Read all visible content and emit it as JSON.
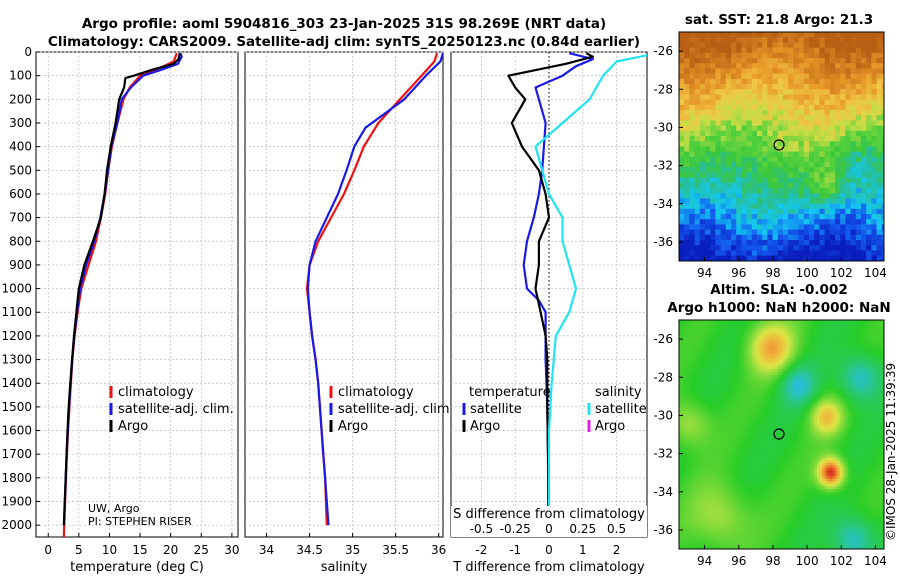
{
  "header": {
    "line1": "Argo profile: aoml 5904816_303 23-Jan-2025 31S 98.269E (NRT data)",
    "line2": "Climatology: CARS2009. Satellite-adj clim: synTS_20250123.nc (0.84d earlier)"
  },
  "attribution": {
    "text": "UW, Argo",
    "pi": "PI: STEPHEN RISER"
  },
  "credit": "©IMOS 28-Jan-2025 11:39:39",
  "colors": {
    "climatology": "#ee1111",
    "satellite": "#1a1ae6",
    "argo": "#000000",
    "sat_salinity": "#22e3f0",
    "argo_salinity": "#e020e0"
  },
  "depth_ticks": [
    "0",
    "100",
    "200",
    "300",
    "400",
    "500",
    "600",
    "700",
    "800",
    "900",
    "1000",
    "1100",
    "1200",
    "1300",
    "1400",
    "1500",
    "1600",
    "1700",
    "1800",
    "1900",
    "2000"
  ],
  "chart_data": [
    {
      "type": "line",
      "title": "",
      "xlabel": "temperature (deg C)",
      "ylabel": "depth",
      "xlim": [
        -2,
        31
      ],
      "ylim": [
        2050,
        0
      ],
      "xticks": [
        "0",
        "5",
        "10",
        "15",
        "20",
        "25",
        "30"
      ],
      "legend": [
        "climatology",
        "satellite-adj. clim.",
        "Argo"
      ],
      "series": [
        {
          "name": "climatology",
          "color": "#ee1111",
          "points": [
            [
              21,
              5
            ],
            [
              20.5,
              40
            ],
            [
              18,
              70
            ],
            [
              15,
              100
            ],
            [
              13.3,
              150
            ],
            [
              12.3,
              200
            ],
            [
              11.3,
              300
            ],
            [
              10.4,
              400
            ],
            [
              9.8,
              500
            ],
            [
              9.3,
              600
            ],
            [
              8.6,
              700
            ],
            [
              7.8,
              800
            ],
            [
              6.6,
              900
            ],
            [
              5.4,
              1000
            ],
            [
              4.8,
              1100
            ],
            [
              4.3,
              1200
            ],
            [
              3.95,
              1300
            ],
            [
              3.7,
              1400
            ],
            [
              3.45,
              1500
            ],
            [
              3.25,
              1600
            ],
            [
              3.05,
              1700
            ],
            [
              2.9,
              1800
            ],
            [
              2.75,
              1900
            ],
            [
              2.6,
              2000
            ],
            [
              2.55,
              2050
            ]
          ]
        },
        {
          "name": "satellite-adj. clim.",
          "color": "#1a1ae6",
          "points": [
            [
              21.6,
              5
            ],
            [
              21.8,
              20
            ],
            [
              21.2,
              50
            ],
            [
              18.5,
              75
            ],
            [
              15.5,
              100
            ],
            [
              13.5,
              150
            ],
            [
              12.0,
              200
            ],
            [
              11.3,
              300
            ],
            [
              10.3,
              400
            ],
            [
              9.8,
              500
            ],
            [
              9.2,
              600
            ],
            [
              8.5,
              700
            ],
            [
              7.5,
              800
            ],
            [
              6.2,
              900
            ],
            [
              5.2,
              1000
            ],
            [
              4.7,
              1100
            ],
            [
              4.25,
              1200
            ],
            [
              3.9,
              1300
            ],
            [
              3.65,
              1400
            ],
            [
              3.4,
              1500
            ],
            [
              3.2,
              1600
            ],
            [
              3.0,
              1700
            ],
            [
              2.85,
              1800
            ],
            [
              2.7,
              1900
            ],
            [
              2.55,
              2000
            ]
          ]
        },
        {
          "name": "Argo",
          "color": "#000000",
          "points": [
            [
              21.5,
              5
            ],
            [
              21.3,
              30
            ],
            [
              20.5,
              50
            ],
            [
              17,
              75
            ],
            [
              14,
              100
            ],
            [
              12.6,
              110
            ],
            [
              12.4,
              150
            ],
            [
              11.6,
              200
            ],
            [
              11.0,
              300
            ],
            [
              10.2,
              400
            ],
            [
              9.6,
              500
            ],
            [
              9.2,
              600
            ],
            [
              8.6,
              700
            ],
            [
              7.3,
              800
            ],
            [
              5.9,
              900
            ],
            [
              5.0,
              1000
            ],
            [
              4.6,
              1100
            ],
            [
              4.2,
              1200
            ],
            [
              3.9,
              1300
            ],
            [
              3.6,
              1400
            ],
            [
              3.35,
              1500
            ],
            [
              3.15,
              1600
            ],
            [
              3.0,
              1700
            ],
            [
              2.85,
              1800
            ],
            [
              2.7,
              1900
            ],
            [
              2.55,
              2000
            ]
          ]
        }
      ]
    },
    {
      "type": "line",
      "title": "",
      "xlabel": "salinity",
      "ylabel": "depth",
      "xlim": [
        33.75,
        36.05
      ],
      "ylim": [
        2050,
        0
      ],
      "xticks": [
        "34",
        "34.5",
        "35",
        "35.5",
        "36"
      ],
      "legend": [
        "climatology",
        "satellite-adj. clim.",
        "Argo"
      ],
      "series": [
        {
          "name": "climatology",
          "color": "#ee1111",
          "points": [
            [
              35.98,
              5
            ],
            [
              35.95,
              40
            ],
            [
              35.8,
              100
            ],
            [
              35.55,
              200
            ],
            [
              35.3,
              300
            ],
            [
              35.13,
              400
            ],
            [
              35.02,
              500
            ],
            [
              34.9,
              600
            ],
            [
              34.75,
              700
            ],
            [
              34.6,
              800
            ],
            [
              34.5,
              900
            ],
            [
              34.47,
              1000
            ],
            [
              34.5,
              1100
            ],
            [
              34.53,
              1200
            ],
            [
              34.57,
              1300
            ],
            [
              34.6,
              1400
            ],
            [
              34.62,
              1500
            ],
            [
              34.64,
              1600
            ],
            [
              34.66,
              1700
            ],
            [
              34.68,
              1800
            ],
            [
              34.69,
              1900
            ],
            [
              34.7,
              2000
            ]
          ]
        },
        {
          "name": "satellite-adj. clim.",
          "color": "#1a1ae6",
          "points": [
            [
              36.05,
              5
            ],
            [
              36.02,
              40
            ],
            [
              35.85,
              100
            ],
            [
              35.6,
              200
            ],
            [
              35.15,
              320
            ],
            [
              35.02,
              400
            ],
            [
              34.93,
              500
            ],
            [
              34.83,
              600
            ],
            [
              34.7,
              700
            ],
            [
              34.57,
              800
            ],
            [
              34.5,
              900
            ],
            [
              34.48,
              1000
            ],
            [
              34.5,
              1100
            ],
            [
              34.53,
              1200
            ],
            [
              34.57,
              1300
            ],
            [
              34.6,
              1400
            ],
            [
              34.62,
              1500
            ],
            [
              34.64,
              1600
            ],
            [
              34.66,
              1700
            ],
            [
              34.68,
              1800
            ],
            [
              34.7,
              1900
            ],
            [
              34.72,
              2000
            ]
          ]
        },
        {
          "name": "Argo",
          "color": "#000000",
          "points": []
        }
      ]
    },
    {
      "type": "line",
      "title": "",
      "xlabel": "T difference from climatology",
      "ylabel": "depth",
      "xlim": [
        -2.9,
        2.9
      ],
      "ylim": [
        2050,
        0
      ],
      "xticks": [
        "-2",
        "-1",
        "0",
        "1",
        "2"
      ],
      "secondary_xlabel": "S difference from climatology",
      "secondary_xticks": [
        "-0.5",
        "-0.25",
        "0",
        "0.25",
        "0.5"
      ],
      "legend_titles": [
        "temperature",
        "salinity"
      ],
      "legend": [
        "satellite",
        "Argo",
        "satellite",
        "Argo"
      ],
      "series": [
        {
          "name": "temperature satellite",
          "color": "#1a1ae6",
          "points": [
            [
              0.6,
              5
            ],
            [
              1.3,
              30
            ],
            [
              0.8,
              60
            ],
            [
              0.4,
              100
            ],
            [
              -0.4,
              150
            ],
            [
              -0.3,
              200
            ],
            [
              -0.1,
              300
            ],
            [
              -0.2,
              500
            ],
            [
              -0.3,
              600
            ],
            [
              -0.45,
              700
            ],
            [
              -0.65,
              800
            ],
            [
              -0.75,
              900
            ],
            [
              -0.65,
              1000
            ],
            [
              -0.3,
              1050
            ],
            [
              -0.1,
              1100
            ],
            [
              -0.1,
              1300
            ],
            [
              -0.05,
              1500
            ],
            [
              -0.03,
              1700
            ],
            [
              -0.02,
              1900
            ],
            [
              -0.02,
              2000
            ]
          ]
        },
        {
          "name": "temperature Argo",
          "color": "#000000",
          "points": [
            [
              1.1,
              5
            ],
            [
              1.3,
              20
            ],
            [
              0.5,
              50
            ],
            [
              -1.2,
              100
            ],
            [
              -1.0,
              150
            ],
            [
              -0.7,
              200
            ],
            [
              -1.1,
              300
            ],
            [
              -0.8,
              400
            ],
            [
              -0.3,
              500
            ],
            [
              -0.1,
              600
            ],
            [
              0.0,
              700
            ],
            [
              -0.3,
              800
            ],
            [
              -0.3,
              900
            ],
            [
              -0.4,
              1000
            ],
            [
              -0.25,
              1100
            ],
            [
              -0.1,
              1200
            ],
            [
              -0.05,
              1300
            ],
            [
              -0.05,
              1500
            ],
            [
              -0.03,
              1700
            ],
            [
              -0.02,
              1900
            ],
            [
              -0.02,
              2000
            ]
          ]
        },
        {
          "name": "salinity satellite",
          "color": "#22e3f0",
          "points": [
            [
              0.8,
              5
            ],
            [
              0.5,
              40
            ],
            [
              0.4,
              100
            ],
            [
              0.3,
              200
            ],
            [
              0.1,
              300
            ],
            [
              -0.1,
              400
            ],
            [
              -0.05,
              500
            ],
            [
              0.0,
              600
            ],
            [
              0.1,
              700
            ],
            [
              0.1,
              800
            ],
            [
              0.15,
              900
            ],
            [
              0.2,
              1000
            ],
            [
              0.15,
              1100
            ],
            [
              0.05,
              1200
            ],
            [
              0.02,
              1400
            ],
            [
              0.0,
              1600
            ],
            [
              0.0,
              2000
            ]
          ]
        },
        {
          "name": "salinity Argo",
          "color": "#e020e0",
          "points": []
        }
      ]
    },
    {
      "type": "heatmap",
      "title": "sat. SST: 21.8 Argo: 21.3",
      "xticks": [
        "94",
        "96",
        "98",
        "100",
        "102",
        "104"
      ],
      "yticks": [
        "-26",
        "-28",
        "-30",
        "-32",
        "-34",
        "-36"
      ],
      "xlim": [
        92.5,
        104.5
      ],
      "ylim": [
        -37,
        -25
      ],
      "marker": [
        98.27,
        -31
      ]
    },
    {
      "type": "heatmap",
      "title": "Altim. SLA: -0.002",
      "subtitle": "Argo h1000: NaN h2000: NaN",
      "xticks": [
        "94",
        "96",
        "98",
        "100",
        "102",
        "104"
      ],
      "yticks": [
        "-26",
        "-28",
        "-30",
        "-32",
        "-34",
        "-36"
      ],
      "xlim": [
        92.5,
        104.5
      ],
      "ylim": [
        -37,
        -25
      ],
      "marker": [
        98.27,
        -31
      ]
    }
  ]
}
